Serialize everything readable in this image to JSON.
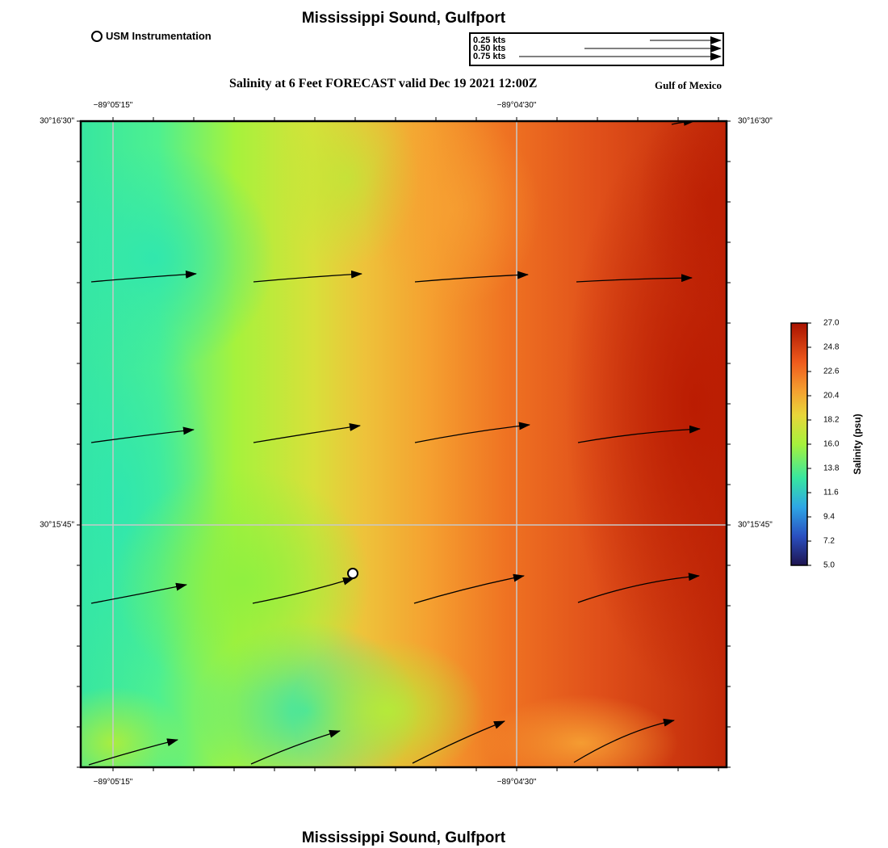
{
  "header": {
    "title": "Mississippi Sound, Gulfport",
    "subtitle": "Salinity at 6 Feet FORECAST valid Dec 19 2021 12:00Z",
    "region": "Gulf of Mexico",
    "footer_title": "Mississippi Sound, Gulfport"
  },
  "station_legend": {
    "label": "USM Instrumentation",
    "icon": "open-circle-icon"
  },
  "vector_legend": [
    {
      "label": "0.25 kts",
      "speed_kts": 0.25
    },
    {
      "label": "0.50 kts",
      "speed_kts": 0.5
    },
    {
      "label": "0.75 kts",
      "speed_kts": 0.75
    }
  ],
  "axes": {
    "lon_labels": [
      "−89°05'15\"",
      "−89°04'30\""
    ],
    "lat_labels": [
      "30°16'30\"",
      "30°15'45\""
    ]
  },
  "colorbar": {
    "label": "Salinity (psu)",
    "min": 5.0,
    "max": 27.0,
    "ticks": [
      "27.0",
      "24.8",
      "22.6",
      "20.4",
      "18.2",
      "16.0",
      "13.8",
      "11.6",
      "9.4",
      "7.2",
      "5.0"
    ],
    "colors": [
      "#1e1450",
      "#2a4fc0",
      "#2ea6e6",
      "#37e6a0",
      "#a6f23c",
      "#e8d63a",
      "#f5a030",
      "#ef5a1c",
      "#a81200"
    ]
  },
  "station": {
    "name": "USM Instrumentation",
    "marker": "open-circle"
  }
}
